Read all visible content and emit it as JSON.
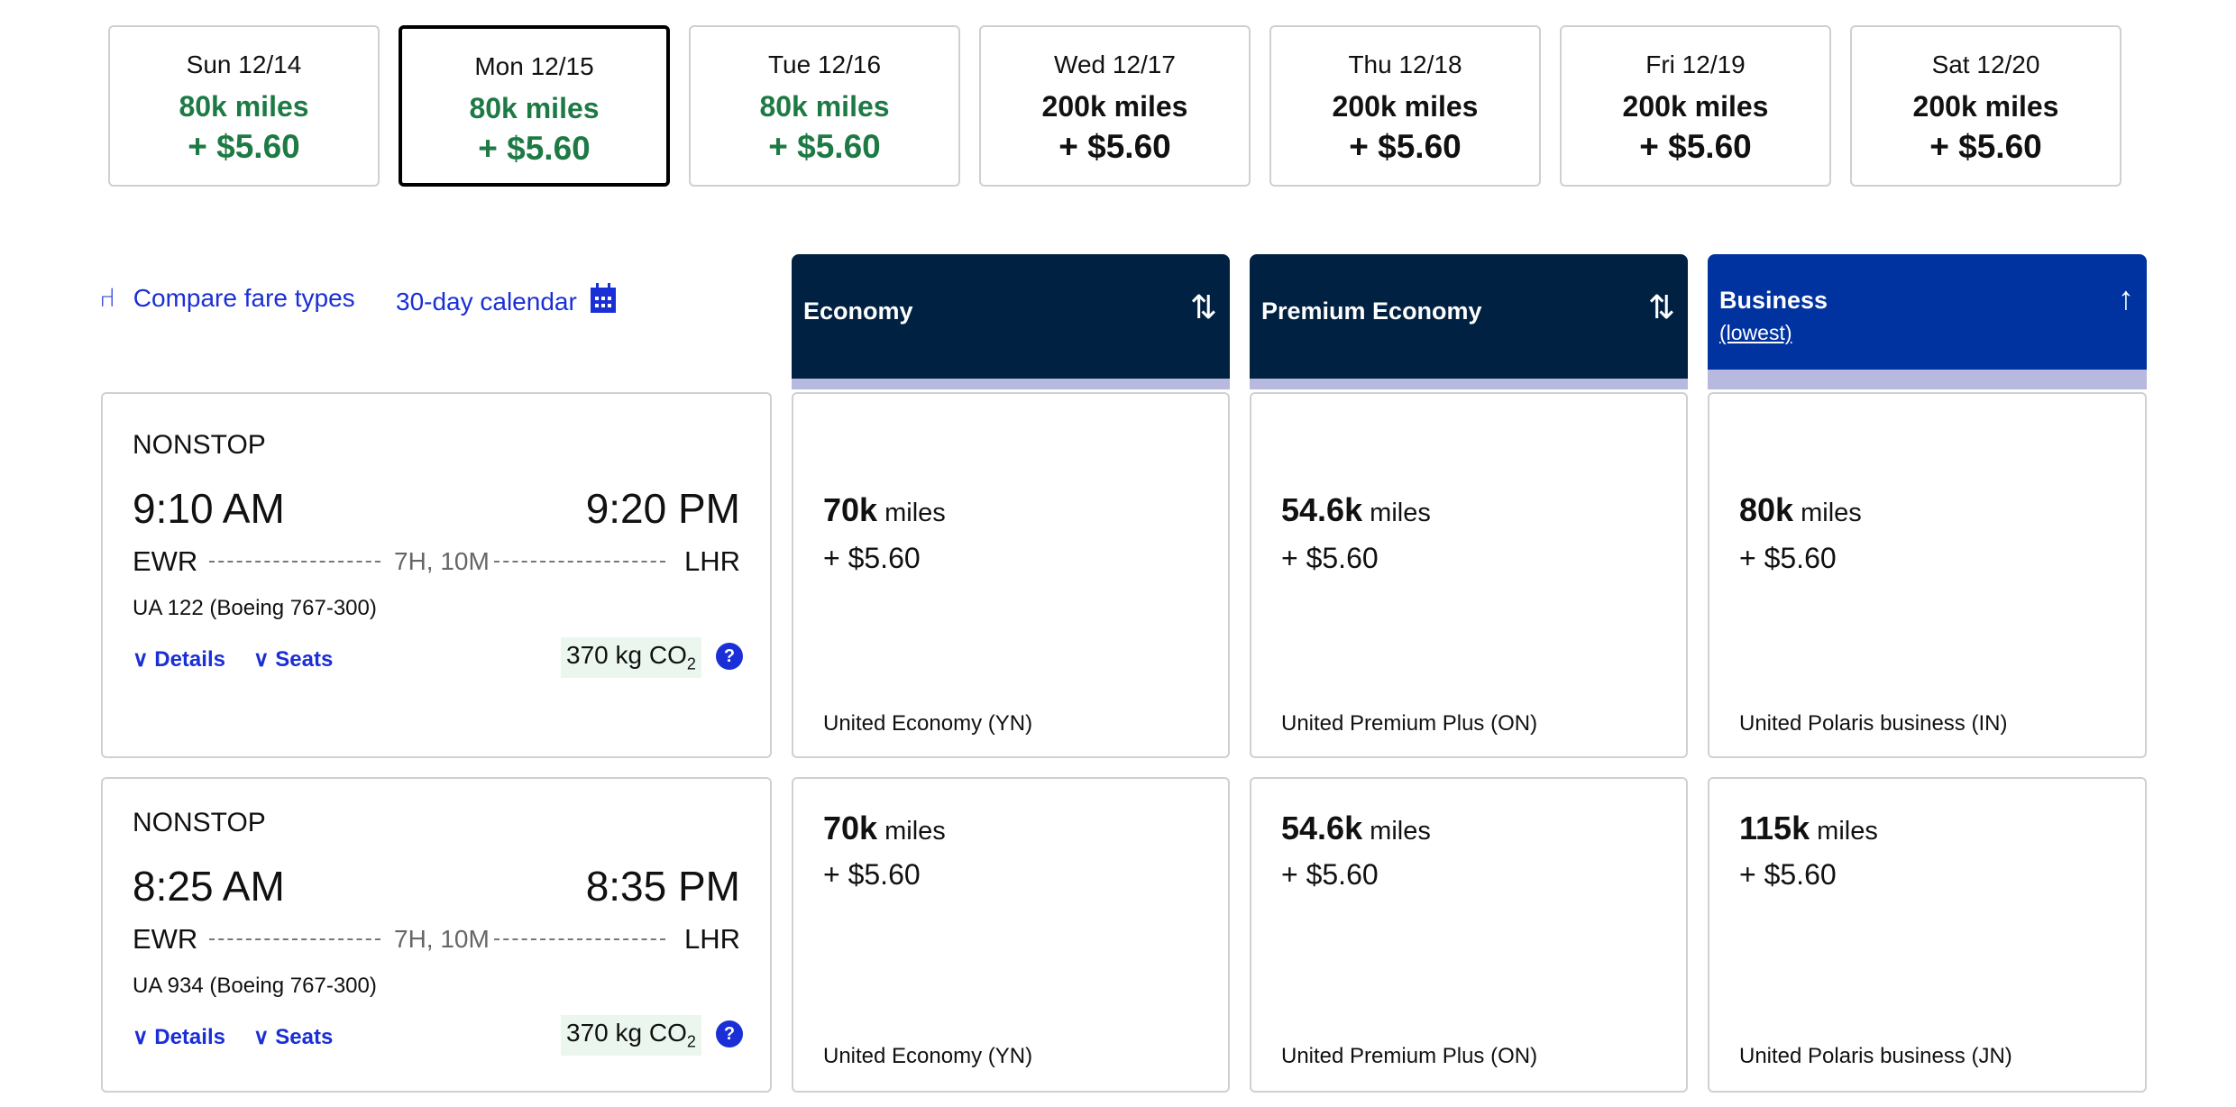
{
  "dates": [
    {
      "day": "Sun 12/14",
      "miles": "80k miles",
      "price": "+ $5.60",
      "lowest": true,
      "selected": false
    },
    {
      "day": "Mon 12/15",
      "miles": "80k miles",
      "price": "+ $5.60",
      "lowest": true,
      "selected": true
    },
    {
      "day": "Tue 12/16",
      "miles": "80k miles",
      "price": "+ $5.60",
      "lowest": true,
      "selected": false
    },
    {
      "day": "Wed 12/17",
      "miles": "200k miles",
      "price": "+ $5.60",
      "lowest": false,
      "selected": false
    },
    {
      "day": "Thu 12/18",
      "miles": "200k miles",
      "price": "+ $5.60",
      "lowest": false,
      "selected": false
    },
    {
      "day": "Fri 12/19",
      "miles": "200k miles",
      "price": "+ $5.60",
      "lowest": false,
      "selected": false
    },
    {
      "day": "Sat 12/20",
      "miles": "200k miles",
      "price": "+ $5.60",
      "lowest": false,
      "selected": false
    }
  ],
  "links": {
    "compare": "Compare fare types",
    "calendar": "30-day calendar"
  },
  "columns": [
    {
      "label": "Economy",
      "sort_icon": "sort-arrows-icon"
    },
    {
      "label": "Premium Economy",
      "sort_icon": "sort-arrows-icon"
    },
    {
      "label": "Business",
      "sub": "(lowest)",
      "sort_icon": "arrow-up-icon"
    }
  ],
  "colors": {
    "header_dark": "#012142",
    "header_active": "#0033a0",
    "lowest_green": "#1e7a45",
    "link": "#1a2fd6"
  },
  "flights": [
    {
      "stops": "NONSTOP",
      "depart": "9:10 AM",
      "arrive": "9:20 PM",
      "from": "EWR",
      "to": "LHR",
      "duration": "7H, 10M",
      "aircraft": "UA 122 (Boeing 767-300)",
      "details": "Details",
      "seats": "Seats",
      "co2": "370 kg CO",
      "co2_sub": "2",
      "fares": [
        {
          "amount": "70k",
          "unit": "miles",
          "price": "+ $5.60",
          "name": "United Economy (YN)"
        },
        {
          "amount": "54.6k",
          "unit": "miles",
          "price": "+ $5.60",
          "name": "United Premium Plus (ON)"
        },
        {
          "amount": "80k",
          "unit": "miles",
          "price": "+ $5.60",
          "name": "United Polaris business (IN)"
        }
      ]
    },
    {
      "stops": "NONSTOP",
      "depart": "8:25 AM",
      "arrive": "8:35 PM",
      "from": "EWR",
      "to": "LHR",
      "duration": "7H, 10M",
      "aircraft": "UA 934 (Boeing 767-300)",
      "details": "Details",
      "seats": "Seats",
      "co2": "370 kg CO",
      "co2_sub": "2",
      "fares": [
        {
          "amount": "70k",
          "unit": "miles",
          "price": "+ $5.60",
          "name": "United Economy (YN)"
        },
        {
          "amount": "54.6k",
          "unit": "miles",
          "price": "+ $5.60",
          "name": "United Premium Plus (ON)"
        },
        {
          "amount": "115k",
          "unit": "miles",
          "price": "+ $5.60",
          "name": "United Polaris business (JN)"
        }
      ]
    }
  ]
}
